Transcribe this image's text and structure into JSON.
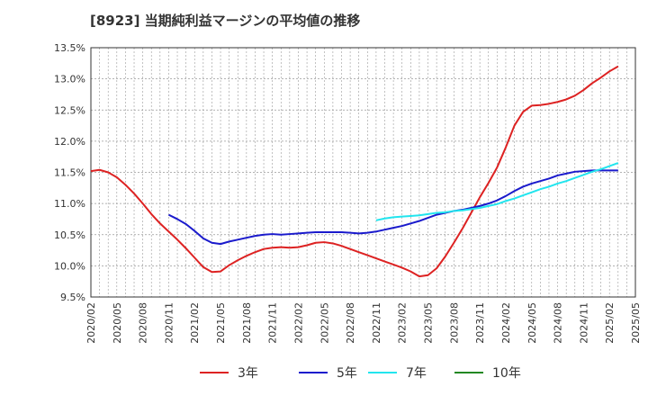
{
  "chart_data": {
    "type": "line",
    "title": "[8923]  当期純利益マージンの平均値の推移",
    "xlabel": "",
    "ylabel": "",
    "ylim": [
      9.5,
      13.5
    ],
    "yticks": [
      9.5,
      10.0,
      10.5,
      11.0,
      11.5,
      12.0,
      12.5,
      13.0,
      13.5
    ],
    "ytick_labels": [
      "9.5%",
      "10.0%",
      "10.5%",
      "11.0%",
      "11.5%",
      "12.0%",
      "12.5%",
      "13.0%",
      "13.5%"
    ],
    "x_range": [
      "2020/02",
      "2025/05"
    ],
    "x_tick_labels": [
      "2020/02",
      "2020/05",
      "2020/08",
      "2020/11",
      "2021/02",
      "2021/05",
      "2021/08",
      "2021/11",
      "2022/02",
      "2022/05",
      "2022/08",
      "2022/11",
      "2023/02",
      "2023/05",
      "2023/08",
      "2023/11",
      "2024/02",
      "2024/05",
      "2024/08",
      "2024/11",
      "2025/02",
      "2025/05"
    ],
    "grid": true,
    "legend_position": "bottom",
    "series": [
      {
        "name": "3年",
        "color": "#dd2222",
        "points": [
          [
            "2020/02",
            11.52
          ],
          [
            "2020/03",
            11.54
          ],
          [
            "2020/04",
            11.5
          ],
          [
            "2020/05",
            11.42
          ],
          [
            "2020/06",
            11.3
          ],
          [
            "2020/07",
            11.16
          ],
          [
            "2020/08",
            11.0
          ],
          [
            "2020/09",
            10.83
          ],
          [
            "2020/10",
            10.68
          ],
          [
            "2020/11",
            10.55
          ],
          [
            "2020/12",
            10.42
          ],
          [
            "2021/01",
            10.28
          ],
          [
            "2021/02",
            10.13
          ],
          [
            "2021/03",
            9.98
          ],
          [
            "2021/04",
            9.9
          ],
          [
            "2021/05",
            9.91
          ],
          [
            "2021/06",
            10.01
          ],
          [
            "2021/07",
            10.09
          ],
          [
            "2021/08",
            10.16
          ],
          [
            "2021/09",
            10.22
          ],
          [
            "2021/10",
            10.27
          ],
          [
            "2021/11",
            10.29
          ],
          [
            "2021/12",
            10.3
          ],
          [
            "2022/01",
            10.29
          ],
          [
            "2022/02",
            10.3
          ],
          [
            "2022/03",
            10.33
          ],
          [
            "2022/04",
            10.37
          ],
          [
            "2022/05",
            10.38
          ],
          [
            "2022/06",
            10.36
          ],
          [
            "2022/07",
            10.32
          ],
          [
            "2022/08",
            10.27
          ],
          [
            "2022/09",
            10.22
          ],
          [
            "2022/10",
            10.17
          ],
          [
            "2022/11",
            10.12
          ],
          [
            "2022/12",
            10.07
          ],
          [
            "2023/01",
            10.02
          ],
          [
            "2023/02",
            9.97
          ],
          [
            "2023/03",
            9.91
          ],
          [
            "2023/04",
            9.83
          ],
          [
            "2023/05",
            9.85
          ],
          [
            "2023/06",
            9.96
          ],
          [
            "2023/07",
            10.15
          ],
          [
            "2023/08",
            10.37
          ],
          [
            "2023/09",
            10.6
          ],
          [
            "2023/10",
            10.85
          ],
          [
            "2023/11",
            11.1
          ],
          [
            "2023/12",
            11.33
          ],
          [
            "2024/01",
            11.58
          ],
          [
            "2024/02",
            11.9
          ],
          [
            "2024/03",
            12.25
          ],
          [
            "2024/04",
            12.47
          ],
          [
            "2024/05",
            12.57
          ],
          [
            "2024/06",
            12.58
          ],
          [
            "2024/07",
            12.6
          ],
          [
            "2024/08",
            12.63
          ],
          [
            "2024/09",
            12.67
          ],
          [
            "2024/10",
            12.73
          ],
          [
            "2024/11",
            12.82
          ],
          [
            "2024/12",
            12.93
          ],
          [
            "2025/01",
            13.02
          ],
          [
            "2025/02",
            13.12
          ],
          [
            "2025/03",
            13.2
          ]
        ]
      },
      {
        "name": "5年",
        "color": "#1a1acc",
        "points": [
          [
            "2020/11",
            10.82
          ],
          [
            "2020/12",
            10.75
          ],
          [
            "2021/01",
            10.67
          ],
          [
            "2021/02",
            10.56
          ],
          [
            "2021/03",
            10.44
          ],
          [
            "2021/04",
            10.37
          ],
          [
            "2021/05",
            10.35
          ],
          [
            "2021/06",
            10.39
          ],
          [
            "2021/07",
            10.42
          ],
          [
            "2021/08",
            10.45
          ],
          [
            "2021/09",
            10.48
          ],
          [
            "2021/10",
            10.5
          ],
          [
            "2021/11",
            10.51
          ],
          [
            "2021/12",
            10.5
          ],
          [
            "2022/01",
            10.51
          ],
          [
            "2022/02",
            10.52
          ],
          [
            "2022/03",
            10.53
          ],
          [
            "2022/04",
            10.54
          ],
          [
            "2022/05",
            10.54
          ],
          [
            "2022/06",
            10.54
          ],
          [
            "2022/07",
            10.54
          ],
          [
            "2022/08",
            10.53
          ],
          [
            "2022/09",
            10.52
          ],
          [
            "2022/10",
            10.53
          ],
          [
            "2022/11",
            10.55
          ],
          [
            "2022/12",
            10.58
          ],
          [
            "2023/01",
            10.61
          ],
          [
            "2023/02",
            10.64
          ],
          [
            "2023/03",
            10.68
          ],
          [
            "2023/04",
            10.72
          ],
          [
            "2023/05",
            10.77
          ],
          [
            "2023/06",
            10.82
          ],
          [
            "2023/07",
            10.85
          ],
          [
            "2023/08",
            10.88
          ],
          [
            "2023/09",
            10.9
          ],
          [
            "2023/10",
            10.93
          ],
          [
            "2023/11",
            10.96
          ],
          [
            "2023/12",
            11.0
          ],
          [
            "2024/01",
            11.05
          ],
          [
            "2024/02",
            11.12
          ],
          [
            "2024/03",
            11.2
          ],
          [
            "2024/04",
            11.27
          ],
          [
            "2024/05",
            11.32
          ],
          [
            "2024/06",
            11.36
          ],
          [
            "2024/07",
            11.4
          ],
          [
            "2024/08",
            11.45
          ],
          [
            "2024/09",
            11.48
          ],
          [
            "2024/10",
            11.51
          ],
          [
            "2024/11",
            11.52
          ],
          [
            "2024/12",
            11.53
          ],
          [
            "2025/01",
            11.53
          ],
          [
            "2025/02",
            11.53
          ],
          [
            "2025/03",
            11.53
          ]
        ]
      },
      {
        "name": "7年",
        "color": "#22e5ee",
        "points": [
          [
            "2022/11",
            10.73
          ],
          [
            "2022/12",
            10.76
          ],
          [
            "2023/01",
            10.78
          ],
          [
            "2023/02",
            10.79
          ],
          [
            "2023/03",
            10.8
          ],
          [
            "2023/04",
            10.81
          ],
          [
            "2023/05",
            10.83
          ],
          [
            "2023/06",
            10.85
          ],
          [
            "2023/07",
            10.86
          ],
          [
            "2023/08",
            10.88
          ],
          [
            "2023/09",
            10.89
          ],
          [
            "2023/10",
            10.91
          ],
          [
            "2023/11",
            10.93
          ],
          [
            "2023/12",
            10.96
          ],
          [
            "2024/01",
            10.99
          ],
          [
            "2024/02",
            11.04
          ],
          [
            "2024/03",
            11.08
          ],
          [
            "2024/04",
            11.13
          ],
          [
            "2024/05",
            11.18
          ],
          [
            "2024/06",
            11.23
          ],
          [
            "2024/07",
            11.27
          ],
          [
            "2024/08",
            11.32
          ],
          [
            "2024/09",
            11.36
          ],
          [
            "2024/10",
            11.41
          ],
          [
            "2024/11",
            11.46
          ],
          [
            "2024/12",
            11.51
          ],
          [
            "2025/01",
            11.55
          ],
          [
            "2025/02",
            11.6
          ],
          [
            "2025/03",
            11.65
          ]
        ]
      },
      {
        "name": "10年",
        "color": "#228822",
        "points": []
      }
    ]
  }
}
